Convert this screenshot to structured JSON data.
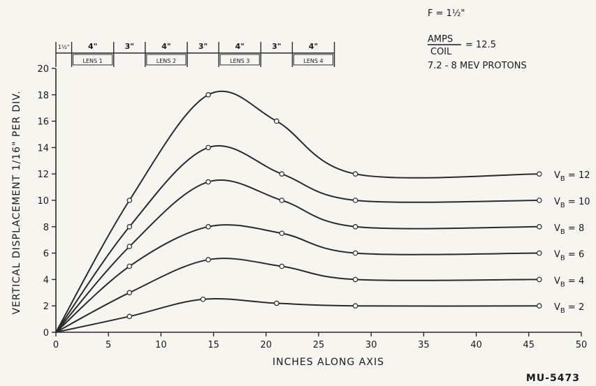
{
  "chart_data": {
    "type": "line",
    "ylabel": "VERTICAL DISPLACEMENT 1/16\" PER DIV.",
    "xlabel": "INCHES ALONG AXIS",
    "figure_id": "MU-5473",
    "xlim": [
      0,
      50
    ],
    "ylim": [
      0,
      20
    ],
    "xticks": [
      "0",
      "5",
      "10",
      "15",
      "20",
      "25",
      "30",
      "35",
      "40",
      "45",
      "50"
    ],
    "yticks": [
      "0",
      "2",
      "4",
      "6",
      "8",
      "10",
      "12",
      "14",
      "16",
      "18",
      "20"
    ],
    "annotations": {
      "focal": "F = 1½\"",
      "amps_num": "AMPS",
      "amps_den": "COIL",
      "amps_val": "= 12.5",
      "protons": "7.2 - 8 MEV PROTONS"
    },
    "segments": [
      {
        "len": "1½\"",
        "label": "",
        "start": 0,
        "end": 1.5
      },
      {
        "len": "4\"",
        "label": "LENS 1",
        "start": 1.5,
        "end": 5.5
      },
      {
        "len": "3\"",
        "label": "",
        "start": 5.5,
        "end": 8.5
      },
      {
        "len": "4\"",
        "label": "LENS 2",
        "start": 8.5,
        "end": 12.5
      },
      {
        "len": "3\"",
        "label": "",
        "start": 12.5,
        "end": 15.5
      },
      {
        "len": "4\"",
        "label": "LENS 3",
        "start": 15.5,
        "end": 19.5
      },
      {
        "len": "3\"",
        "label": "",
        "start": 19.5,
        "end": 22.5
      },
      {
        "len": "4\"",
        "label": "LENS 4",
        "start": 22.5,
        "end": 26.5
      }
    ],
    "series": [
      {
        "name": "VB = 12",
        "points": [
          [
            0,
            0
          ],
          [
            7,
            10
          ],
          [
            14.5,
            18
          ],
          [
            21,
            16
          ],
          [
            28.5,
            12
          ],
          [
            46,
            12
          ]
        ]
      },
      {
        "name": "VB = 10",
        "points": [
          [
            0,
            0
          ],
          [
            7,
            8
          ],
          [
            14.5,
            14
          ],
          [
            21.5,
            12
          ],
          [
            28.5,
            10
          ],
          [
            46,
            10
          ]
        ]
      },
      {
        "name": "VB = 8",
        "points": [
          [
            0,
            0
          ],
          [
            7,
            6.5
          ],
          [
            14.5,
            11.4
          ],
          [
            21.5,
            10
          ],
          [
            28.5,
            8
          ],
          [
            46,
            8
          ]
        ]
      },
      {
        "name": "VB = 6",
        "points": [
          [
            0,
            0
          ],
          [
            7,
            5
          ],
          [
            14.5,
            8
          ],
          [
            21.5,
            7.5
          ],
          [
            28.5,
            6
          ],
          [
            46,
            6
          ]
        ]
      },
      {
        "name": "VB = 4",
        "points": [
          [
            0,
            0
          ],
          [
            7,
            3
          ],
          [
            14.5,
            5.5
          ],
          [
            21.5,
            5
          ],
          [
            28.5,
            4
          ],
          [
            46,
            4
          ]
        ]
      },
      {
        "name": "VB = 2",
        "points": [
          [
            0,
            0
          ],
          [
            7,
            1.2
          ],
          [
            14,
            2.5
          ],
          [
            21,
            2.2
          ],
          [
            28.5,
            2
          ],
          [
            46,
            2
          ]
        ]
      }
    ]
  }
}
